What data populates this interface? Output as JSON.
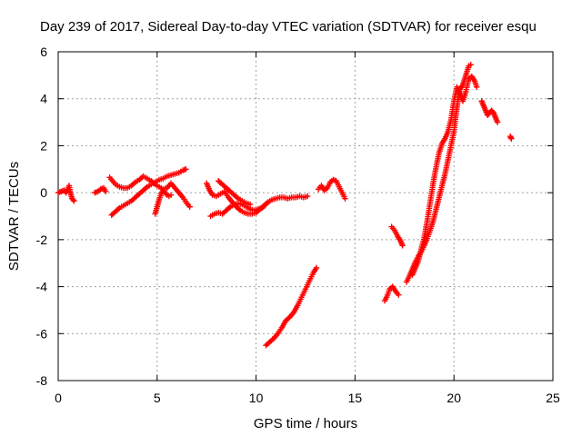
{
  "chart_data": {
    "type": "scatter",
    "title": "Day 239 of 2017, Sidereal Day-to-day VTEC variation (SDTVAR) for receiver esqu",
    "xlabel": "GPS time / hours",
    "ylabel": "SDTVAR / TECUs",
    "xlim": [
      0,
      25
    ],
    "ylim": [
      -8,
      6
    ],
    "xticks": [
      0,
      5,
      10,
      15,
      20,
      25
    ],
    "yticks": [
      -8,
      -6,
      -4,
      -2,
      0,
      2,
      4,
      6
    ],
    "xtick_labels": [
      "0",
      "5",
      "10",
      "15",
      "20",
      "25"
    ],
    "ytick_labels": [
      "-8",
      "-6",
      "-4",
      "-2",
      "0",
      "2",
      "4",
      "6"
    ],
    "grid": true,
    "marker": "+",
    "color": "#ff0000",
    "series": [
      {
        "name": "SDTVAR",
        "segments": [
          [
            [
              0.0,
              0.0
            ],
            [
              0.15,
              0.05
            ],
            [
              0.3,
              0.1
            ],
            [
              0.4,
              0.0
            ],
            [
              0.5,
              0.15
            ],
            [
              0.55,
              0.3
            ],
            [
              0.6,
              0.05
            ],
            [
              0.65,
              -0.1
            ],
            [
              0.7,
              -0.25
            ],
            [
              0.8,
              -0.35
            ]
          ],
          [
            [
              1.85,
              0.0
            ],
            [
              2.0,
              0.05
            ],
            [
              2.15,
              0.15
            ],
            [
              2.3,
              0.2
            ],
            [
              2.4,
              0.05
            ]
          ],
          [
            [
              2.6,
              0.65
            ],
            [
              2.75,
              0.5
            ],
            [
              2.9,
              0.35
            ],
            [
              3.1,
              0.25
            ],
            [
              3.3,
              0.2
            ],
            [
              3.5,
              0.2
            ],
            [
              3.7,
              0.3
            ],
            [
              3.9,
              0.45
            ],
            [
              4.1,
              0.55
            ],
            [
              4.3,
              0.7
            ],
            [
              4.5,
              0.6
            ],
            [
              4.7,
              0.5
            ],
            [
              4.9,
              0.35
            ],
            [
              5.1,
              0.25
            ],
            [
              5.3,
              0.15
            ],
            [
              5.5,
              0.2
            ],
            [
              5.7,
              0.4
            ],
            [
              5.9,
              0.2
            ],
            [
              6.1,
              0.0
            ],
            [
              6.3,
              -0.2
            ],
            [
              6.5,
              -0.45
            ],
            [
              6.65,
              -0.6
            ]
          ],
          [
            [
              2.7,
              -0.95
            ],
            [
              2.9,
              -0.8
            ],
            [
              3.1,
              -0.65
            ],
            [
              3.3,
              -0.55
            ],
            [
              3.5,
              -0.45
            ],
            [
              3.7,
              -0.35
            ],
            [
              3.9,
              -0.2
            ],
            [
              4.1,
              -0.05
            ],
            [
              4.3,
              0.1
            ],
            [
              4.5,
              0.25
            ],
            [
              4.7,
              0.35
            ],
            [
              4.9,
              0.45
            ],
            [
              5.1,
              0.55
            ],
            [
              5.3,
              0.6
            ],
            [
              5.5,
              0.7
            ],
            [
              5.7,
              0.75
            ],
            [
              5.9,
              0.8
            ],
            [
              6.1,
              0.85
            ],
            [
              6.3,
              0.95
            ],
            [
              6.45,
              1.0
            ]
          ],
          [
            [
              4.9,
              -0.9
            ],
            [
              5.0,
              -0.6
            ],
            [
              5.1,
              -0.3
            ],
            [
              5.2,
              -0.05
            ],
            [
              5.3,
              0.1
            ],
            [
              5.4,
              0.0
            ],
            [
              5.5,
              -0.1
            ],
            [
              5.6,
              -0.15
            ],
            [
              5.7,
              -0.1
            ]
          ],
          [
            [
              7.5,
              0.4
            ],
            [
              7.65,
              0.1
            ],
            [
              7.8,
              -0.1
            ],
            [
              8.0,
              -0.15
            ],
            [
              8.2,
              -0.05
            ],
            [
              8.4,
              0.05
            ],
            [
              8.6,
              -0.2
            ],
            [
              8.8,
              -0.4
            ],
            [
              9.0,
              -0.6
            ],
            [
              9.2,
              -0.75
            ],
            [
              9.4,
              -0.85
            ],
            [
              9.6,
              -0.9
            ],
            [
              9.8,
              -0.9
            ],
            [
              10.0,
              -0.85
            ],
            [
              10.2,
              -0.7
            ],
            [
              10.4,
              -0.55
            ],
            [
              10.6,
              -0.4
            ],
            [
              10.8,
              -0.3
            ],
            [
              11.0,
              -0.25
            ],
            [
              11.2,
              -0.2
            ],
            [
              11.4,
              -0.2
            ],
            [
              11.6,
              -0.25
            ],
            [
              11.8,
              -0.2
            ],
            [
              12.0,
              -0.2
            ],
            [
              12.2,
              -0.15
            ],
            [
              12.4,
              -0.2
            ],
            [
              12.6,
              -0.15
            ]
          ],
          [
            [
              7.7,
              -1.0
            ],
            [
              7.9,
              -0.9
            ],
            [
              8.1,
              -0.85
            ],
            [
              8.3,
              -0.9
            ],
            [
              8.5,
              -0.75
            ],
            [
              8.7,
              -0.6
            ],
            [
              8.9,
              -0.5
            ],
            [
              9.1,
              -0.45
            ],
            [
              9.3,
              -0.5
            ],
            [
              9.5,
              -0.6
            ],
            [
              9.7,
              -0.7
            ],
            [
              9.9,
              -0.75
            ],
            [
              10.1,
              -0.7
            ],
            [
              10.3,
              -0.65
            ],
            [
              10.5,
              -0.5
            ]
          ],
          [
            [
              8.1,
              0.5
            ],
            [
              8.3,
              0.35
            ],
            [
              8.5,
              0.2
            ],
            [
              8.7,
              0.05
            ],
            [
              8.9,
              -0.1
            ],
            [
              9.1,
              -0.25
            ],
            [
              9.3,
              -0.35
            ],
            [
              9.5,
              -0.45
            ],
            [
              9.7,
              -0.5
            ]
          ],
          [
            [
              10.5,
              -6.5
            ],
            [
              10.7,
              -6.35
            ],
            [
              10.9,
              -6.2
            ],
            [
              11.1,
              -6.0
            ],
            [
              11.3,
              -5.75
            ],
            [
              11.5,
              -5.45
            ],
            [
              11.7,
              -5.3
            ],
            [
              11.9,
              -5.1
            ],
            [
              12.1,
              -4.8
            ],
            [
              12.3,
              -4.45
            ],
            [
              12.5,
              -4.1
            ],
            [
              12.7,
              -3.75
            ],
            [
              12.9,
              -3.4
            ],
            [
              13.05,
              -3.2
            ]
          ],
          [
            [
              13.15,
              0.15
            ],
            [
              13.3,
              0.3
            ],
            [
              13.45,
              0.1
            ],
            [
              13.6,
              0.2
            ],
            [
              13.75,
              0.45
            ],
            [
              13.9,
              0.55
            ],
            [
              14.05,
              0.5
            ],
            [
              14.2,
              0.25
            ],
            [
              14.35,
              0.0
            ],
            [
              14.5,
              -0.25
            ]
          ],
          [
            [
              16.5,
              -4.6
            ],
            [
              16.6,
              -4.45
            ],
            [
              16.75,
              -4.1
            ],
            [
              16.9,
              -4.0
            ],
            [
              17.05,
              -4.2
            ],
            [
              17.2,
              -4.35
            ]
          ],
          [
            [
              16.85,
              -1.45
            ],
            [
              17.0,
              -1.6
            ],
            [
              17.15,
              -1.85
            ],
            [
              17.3,
              -2.05
            ],
            [
              17.4,
              -2.25
            ]
          ],
          [
            [
              17.6,
              -3.8
            ],
            [
              17.75,
              -3.55
            ],
            [
              17.9,
              -3.25
            ],
            [
              18.05,
              -2.95
            ],
            [
              18.2,
              -2.7
            ],
            [
              18.35,
              -2.5
            ],
            [
              18.5,
              -2.25
            ],
            [
              18.65,
              -1.95
            ],
            [
              18.8,
              -1.6
            ],
            [
              18.95,
              -1.2
            ],
            [
              19.1,
              -0.7
            ],
            [
              19.25,
              -0.2
            ],
            [
              19.4,
              0.3
            ],
            [
              19.55,
              0.8
            ],
            [
              19.7,
              1.4
            ],
            [
              19.85,
              2.0
            ],
            [
              20.0,
              2.6
            ],
            [
              20.1,
              3.3
            ],
            [
              20.2,
              3.9
            ],
            [
              20.3,
              4.4
            ],
            [
              20.45,
              4.6
            ],
            [
              20.6,
              5.0
            ],
            [
              20.75,
              5.4
            ],
            [
              20.85,
              5.45
            ]
          ],
          [
            [
              17.9,
              -3.5
            ],
            [
              18.05,
              -3.2
            ],
            [
              18.2,
              -2.9
            ],
            [
              18.35,
              -2.4
            ],
            [
              18.5,
              -1.9
            ],
            [
              18.65,
              -1.2
            ],
            [
              18.8,
              -0.4
            ],
            [
              18.95,
              0.4
            ],
            [
              19.1,
              1.1
            ],
            [
              19.25,
              1.7
            ],
            [
              19.4,
              2.1
            ],
            [
              19.55,
              2.3
            ],
            [
              19.7,
              2.6
            ],
            [
              19.85,
              3.1
            ],
            [
              20.0,
              3.9
            ],
            [
              20.15,
              4.5
            ],
            [
              20.3,
              4.2
            ],
            [
              20.45,
              3.9
            ],
            [
              20.6,
              4.3
            ],
            [
              20.75,
              4.85
            ],
            [
              20.9,
              4.95
            ],
            [
              21.05,
              4.75
            ],
            [
              21.15,
              4.5
            ]
          ],
          [
            [
              21.4,
              3.9
            ],
            [
              21.5,
              3.7
            ],
            [
              21.6,
              3.5
            ],
            [
              21.7,
              3.3
            ],
            [
              21.8,
              3.4
            ],
            [
              21.9,
              3.5
            ],
            [
              22.0,
              3.4
            ],
            [
              22.1,
              3.2
            ],
            [
              22.2,
              3.0
            ]
          ],
          [
            [
              22.85,
              2.4
            ],
            [
              22.9,
              2.3
            ]
          ]
        ]
      }
    ]
  }
}
